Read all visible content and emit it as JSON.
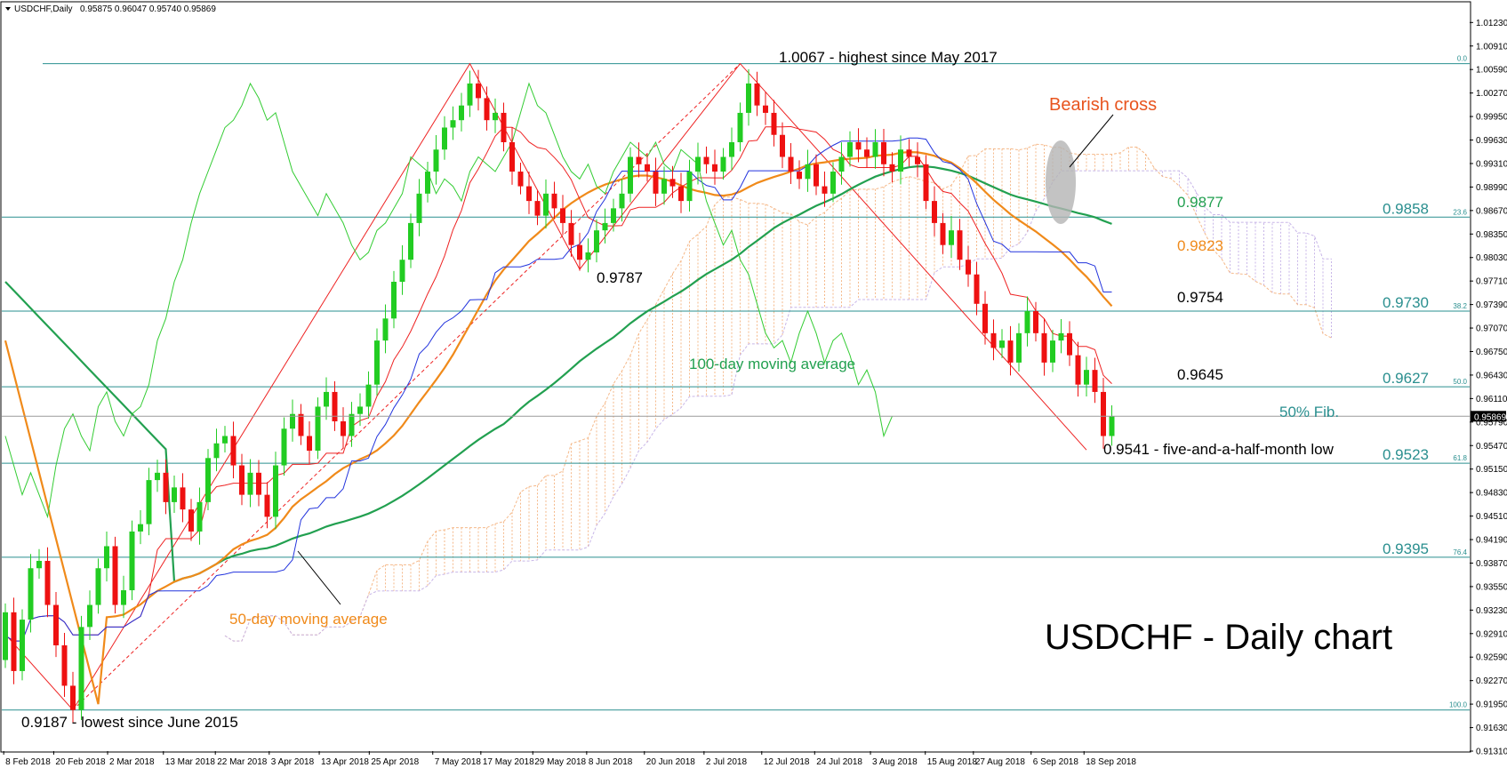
{
  "header": {
    "symbol_text": "USDCHF,Daily",
    "ohlc_text": "0.95875 0.96047 0.95740 0.95869"
  },
  "chart_data": {
    "type": "candlestick",
    "title": "USDCHF - Daily chart",
    "instrument": "USDCHF",
    "timeframe": "Daily",
    "ylim": [
      0.9131,
      1.015
    ],
    "y_ticks": [
      "1.01230",
      "1.00910",
      "1.00590",
      "1.00270",
      "0.99950",
      "0.99630",
      "0.99310",
      "0.98990",
      "0.98670",
      "0.98350",
      "0.98030",
      "0.97710",
      "0.97390",
      "0.97070",
      "0.96750",
      "0.96430",
      "0.96110",
      "0.95790",
      "0.95470",
      "0.95150",
      "0.94830",
      "0.94510",
      "0.94190",
      "0.93870",
      "0.93550",
      "0.93230",
      "0.92910",
      "0.92590",
      "0.92270",
      "0.91950",
      "0.91630",
      "0.91310"
    ],
    "x_ticks": [
      "8 Feb 2018",
      "20 Feb 2018",
      "2 Mar 2018",
      "13 Mar 2018",
      "22 Mar 2018",
      "3 Apr 2018",
      "13 Apr 2018",
      "25 Apr 2018",
      "7 May 2018",
      "17 May 2018",
      "29 May 2018",
      "8 Jun 2018",
      "20 Jun 2018",
      "2 Jul 2018",
      "12 Jul 2018",
      "24 Jul 2018",
      "3 Aug 2018",
      "15 Aug 2018",
      "27 Aug 2018",
      "6 Sep 2018",
      "18 Sep 2018"
    ],
    "current_price": "0.95869",
    "fib_levels": [
      {
        "pct": "0.0",
        "price": 1.0067,
        "label": ""
      },
      {
        "pct": "23.6",
        "price": 0.9858,
        "label": "0.9858"
      },
      {
        "pct": "38.2",
        "price": 0.973,
        "label": "0.9730"
      },
      {
        "pct": "50.0",
        "price": 0.9627,
        "label": "0.9627"
      },
      {
        "pct": "61.8",
        "price": 0.9523,
        "label": "0.9523"
      },
      {
        "pct": "76.4",
        "price": 0.9395,
        "label": "0.9395"
      },
      {
        "pct": "100.0",
        "price": 0.9187,
        "label": ""
      }
    ],
    "annotations": {
      "high": "1.0067 - highest since May 2017",
      "low": "0.9187 - lowest since June 2015",
      "mid_low": "0.9787",
      "recent_low": "0.9541 -  five-and-a-half-month low",
      "bearish_cross": "Bearish cross",
      "ma100_label": "100-day moving average",
      "ma50_label": "50-day moving average",
      "fib50_label": "50% Fib.",
      "ma100_value": "0.9877",
      "ma50_value": "0.9823",
      "kijun_value": "0.9754",
      "tenkan_value": "0.9645"
    },
    "closes": [
      0.932,
      0.924,
      0.931,
      0.938,
      0.939,
      0.933,
      0.9275,
      0.922,
      0.9187,
      0.93,
      0.933,
      0.938,
      0.941,
      0.933,
      0.935,
      0.943,
      0.944,
      0.95,
      0.951,
      0.947,
      0.949,
      0.946,
      0.943,
      0.947,
      0.953,
      0.955,
      0.956,
      0.952,
      0.948,
      0.951,
      0.948,
      0.945,
      0.952,
      0.957,
      0.959,
      0.956,
      0.954,
      0.96,
      0.962,
      0.958,
      0.956,
      0.959,
      0.96,
      0.963,
      0.969,
      0.972,
      0.977,
      0.98,
      0.985,
      0.989,
      0.992,
      0.995,
      0.998,
      0.999,
      1.001,
      1.004,
      1.002,
      0.999,
      1.0,
      0.996,
      0.992,
      0.99,
      0.988,
      0.986,
      0.989,
      0.987,
      0.985,
      0.982,
      0.98,
      0.981,
      0.984,
      0.985,
      0.987,
      0.989,
      0.994,
      0.993,
      0.992,
      0.989,
      0.991,
      0.99,
      0.988,
      0.992,
      0.994,
      0.993,
      0.992,
      0.994,
      0.996,
      1.0,
      1.004,
      1.001,
      1.0,
      0.997,
      0.994,
      0.992,
      0.991,
      0.993,
      0.99,
      0.989,
      0.992,
      0.994,
      0.996,
      0.995,
      0.994,
      0.996,
      0.993,
      0.992,
      0.995,
      0.994,
      0.993,
      0.988,
      0.985,
      0.982,
      0.984,
      0.98,
      0.978,
      0.974,
      0.97,
      0.968,
      0.969,
      0.966,
      0.97,
      0.973,
      0.97,
      0.966,
      0.969,
      0.97,
      0.967,
      0.963,
      0.965,
      0.962,
      0.956,
      0.9587
    ],
    "series": [
      {
        "name": "100-day moving average"
      },
      {
        "name": "50-day moving average"
      }
    ]
  },
  "colors": {
    "bull": "#22cc22",
    "bear": "#ee1111",
    "ma100": "#22a050",
    "ma50": "#f08a1a",
    "tenkan": "#ee2222",
    "kijun": "#2233dd",
    "chikou": "#33cc33",
    "fib": "#2a8f8f",
    "cloud_a": "#f5b98a",
    "cloud_b": "#c8b6e8"
  }
}
